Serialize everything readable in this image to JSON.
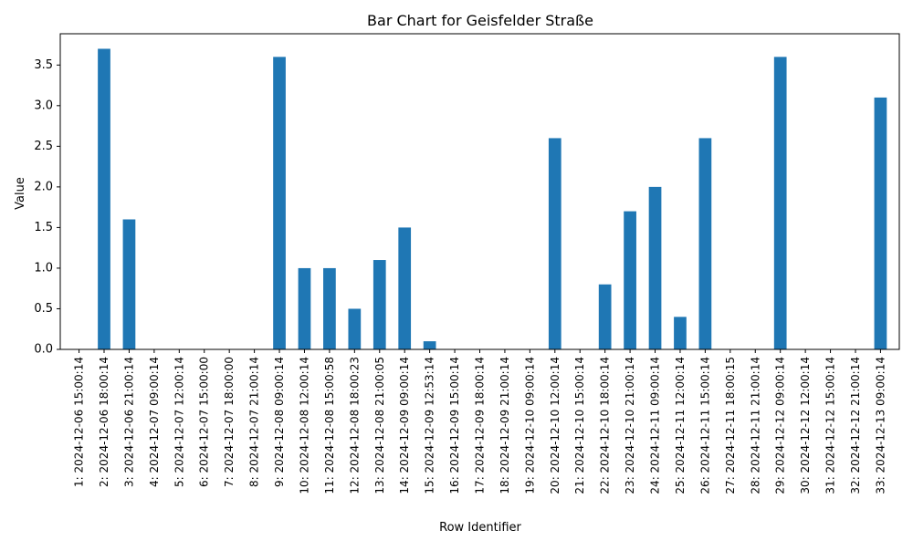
{
  "chart_data": {
    "type": "bar",
    "title": "Bar Chart for Geisfelder Straße",
    "xlabel": "Row Identifier",
    "ylabel": "Value",
    "ylim": [
      0,
      3.885
    ],
    "yticks": [
      "0.0",
      "0.5",
      "1.0",
      "1.5",
      "2.0",
      "2.5",
      "3.0",
      "3.5"
    ],
    "bar_color": "#1f77b4",
    "grid": false,
    "legend": "none",
    "categories": [
      "1: 2024-12-06 15:00:14",
      "2: 2024-12-06 18:00:14",
      "3: 2024-12-06 21:00:14",
      "4: 2024-12-07 09:00:14",
      "5: 2024-12-07 12:00:14",
      "6: 2024-12-07 15:00:00",
      "7: 2024-12-07 18:00:00",
      "8: 2024-12-07 21:00:14",
      "9: 2024-12-08 09:00:14",
      "10: 2024-12-08 12:00:14",
      "11: 2024-12-08 15:00:58",
      "12: 2024-12-08 18:00:23",
      "13: 2024-12-08 21:00:05",
      "14: 2024-12-09 09:00:14",
      "15: 2024-12-09 12:53:14",
      "16: 2024-12-09 15:00:14",
      "17: 2024-12-09 18:00:14",
      "18: 2024-12-09 21:00:14",
      "19: 2024-12-10 09:00:14",
      "20: 2024-12-10 12:00:14",
      "21: 2024-12-10 15:00:14",
      "22: 2024-12-10 18:00:14",
      "23: 2024-12-10 21:00:14",
      "24: 2024-12-11 09:00:14",
      "25: 2024-12-11 12:00:14",
      "26: 2024-12-11 15:00:14",
      "27: 2024-12-11 18:00:15",
      "28: 2024-12-11 21:00:14",
      "29: 2024-12-12 09:00:14",
      "30: 2024-12-12 12:00:14",
      "31: 2024-12-12 15:00:14",
      "32: 2024-12-12 21:00:14",
      "33: 2024-12-13 09:00:14"
    ],
    "values": [
      0,
      3.7,
      1.6,
      0,
      0,
      0,
      0,
      0,
      3.6,
      1.0,
      1.0,
      0.5,
      1.1,
      1.5,
      0.1,
      0,
      0,
      0,
      0,
      2.6,
      0,
      0.8,
      1.7,
      2.0,
      0.4,
      2.6,
      0,
      0,
      3.6,
      0,
      0,
      0,
      3.1
    ]
  }
}
